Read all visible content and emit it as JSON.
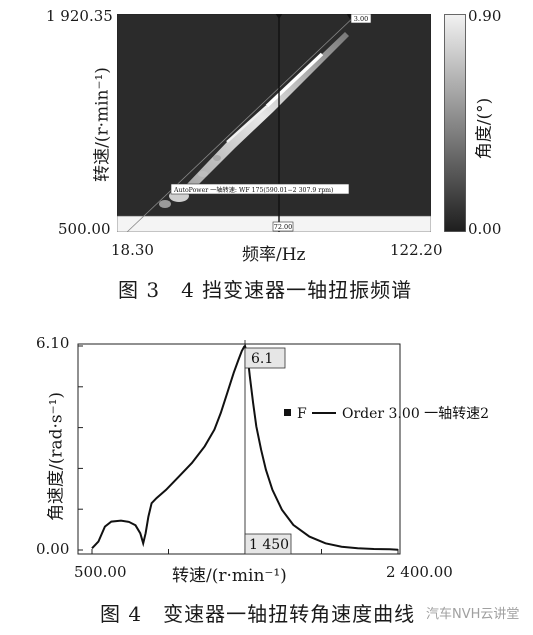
{
  "figure3": {
    "y_top": "1 920.35",
    "y_bottom": "500.00",
    "x_left": "18.30",
    "x_right": "122.20",
    "ylabel": "转速/(r·min⁻¹)",
    "xlabel": "频率/Hz",
    "colorbar_top": "0.90",
    "colorbar_bottom": "0.00",
    "colorbar_label": "角度/(°)",
    "order_tag": "3.00",
    "cursor_tag": "72.00",
    "legend_text": "AutoPower 一轴转速: WF 175(590.01−2 307.9 rpm)",
    "caption": "图 3　4 挡变速器一轴扭振频谱"
  },
  "figure4": {
    "y_top": "6.10",
    "y_bottom": "0.00",
    "x_left": "500.00",
    "x_right": "2 400.00",
    "ylabel": "角速度/(rad·s⁻¹)",
    "xlabel": "转速/(r·min⁻¹)",
    "peak_label": "6.1",
    "cursor_label": "1 450",
    "legend_f": "F",
    "legend_series": "Order 3.00 一轴转速2",
    "caption": "图 4　变速器一轴扭转角速度曲线",
    "watermark": "汽车NVH云讲堂"
  },
  "chart_data": [
    {
      "type": "heatmap",
      "xlabel": "频率/Hz",
      "ylabel": "转速/(r·min⁻¹)",
      "xlim": [
        18.3,
        122.2
      ],
      "ylim": [
        500.0,
        1920.35
      ],
      "colorbar_range": [
        0.0,
        0.9
      ],
      "colorbar_label": "角度/(°)",
      "grid": false,
      "order_line": "3.00",
      "cursor_x": 72.0
    },
    {
      "type": "line",
      "xlabel": "转速/(r·min⁻¹)",
      "ylabel": "角速度/(rad·s⁻¹)",
      "xlim": [
        500.0,
        2400.0
      ],
      "ylim": [
        0.0,
        6.1
      ],
      "grid": false,
      "legend_position": "right",
      "series": [
        {
          "name": "Order 3.00 一轴转速2",
          "x": [
            500,
            540,
            580,
            620,
            680,
            730,
            770,
            800,
            818,
            833,
            850,
            870,
            900,
            960,
            1040,
            1120,
            1200,
            1260,
            1300,
            1340,
            1380,
            1410,
            1430,
            1445,
            1450,
            1465,
            1480,
            1500,
            1520,
            1550,
            1580,
            1620,
            1680,
            1750,
            1850,
            1950,
            2050,
            2150,
            2250,
            2350,
            2400
          ],
          "y": [
            0.05,
            0.25,
            0.7,
            0.85,
            0.88,
            0.84,
            0.74,
            0.5,
            0.2,
            0.5,
            1.0,
            1.4,
            1.55,
            1.8,
            2.2,
            2.6,
            3.1,
            3.6,
            4.1,
            4.7,
            5.3,
            5.7,
            5.95,
            6.08,
            6.1,
            5.85,
            5.2,
            4.4,
            3.7,
            3.0,
            2.4,
            1.8,
            1.2,
            0.75,
            0.4,
            0.2,
            0.1,
            0.05,
            0.03,
            0.02,
            0.01
          ]
        }
      ],
      "peak": {
        "x": 1450,
        "y": 6.1
      },
      "cursor_x": 1450
    }
  ]
}
